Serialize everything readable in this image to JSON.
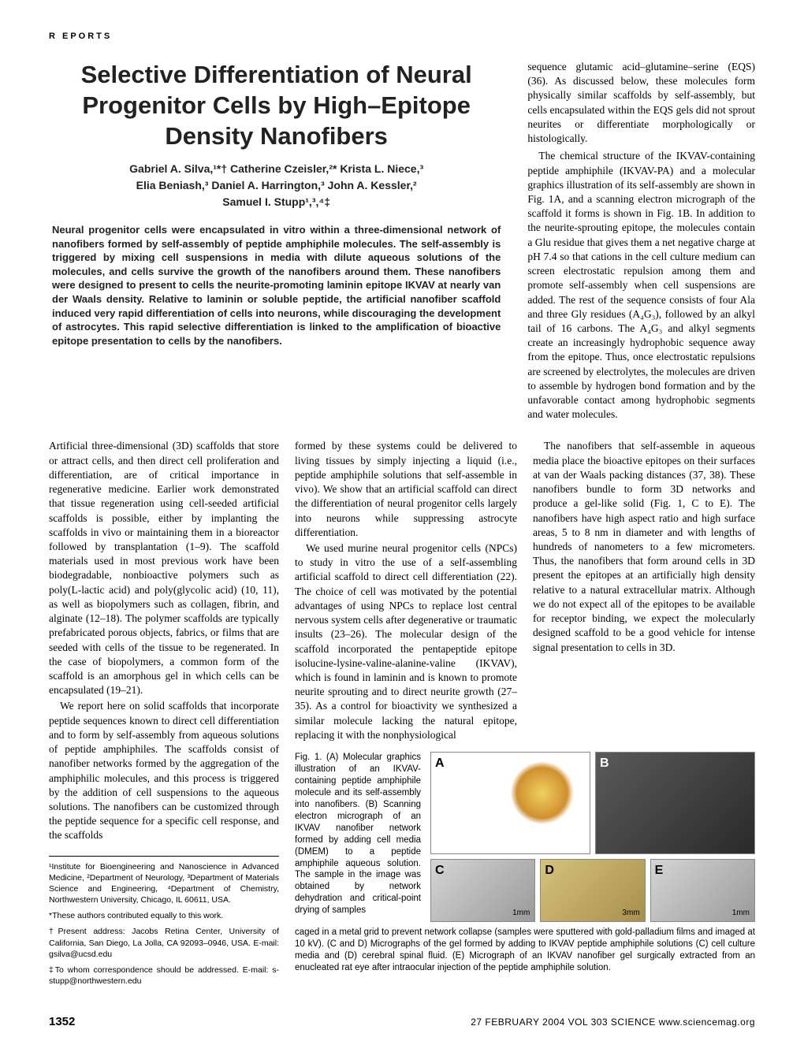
{
  "section_label": "R EPORTS",
  "title": "Selective Differentiation of Neural Progenitor Cells by High–Epitope Density Nanofibers",
  "authors_line1": "Gabriel A. Silva,¹*† Catherine Czeisler,²* Krista L. Niece,³",
  "authors_line2": "Elia Beniash,³ Daniel A. Harrington,³ John A. Kessler,²",
  "authors_line3": "Samuel I. Stupp¹,³,⁴‡",
  "abstract": "Neural progenitor cells were encapsulated in vitro within a three-dimensional network of nanofibers formed by self-assembly of peptide amphiphile molecules. The self-assembly is triggered by mixing cell suspensions in media with dilute aqueous solutions of the molecules, and cells survive the growth of the nanofibers around them. These nanofibers were designed to present to cells the neurite-promoting laminin epitope IKVAV at nearly van der Waals density. Relative to laminin or soluble peptide, the artificial nanofiber scaffold induced very rapid differentiation of cells into neurons, while discouraging the development of astrocytes. This rapid selective differentiation is linked to the amplification of bioactive epitope presentation to cells by the nanofibers.",
  "right_intro_p1": "sequence glutamic acid–glutamine–serine (EQS) (36). As discussed below, these molecules form physically similar scaffolds by self-assembly, but cells encapsulated within the EQS gels did not sprout neurites or differentiate morphologically or histologically.",
  "right_intro_p2": "The chemical structure of the IKVAV-containing peptide amphiphile (IKVAV-PA) and a molecular graphics illustration of its self-assembly are shown in Fig. 1A, and a scanning electron micrograph of the scaffold it forms is shown in Fig. 1B. In addition to the neurite-sprouting epitope, the molecules contain a Glu residue that gives them a net negative charge at pH 7.4 so that cations in the cell culture medium can screen electrostatic repulsion among them and promote self-assembly when cell suspensions are added. The rest of the sequence consists of four Ala and three Gly residues (A₄G₃), followed by an alkyl tail of 16 carbons. The A₄G₃ and alkyl segments create an increasingly hydrophobic sequence away from the epitope. Thus, once electrostatic repulsions are screened by electrolytes, the molecules are driven to assemble by hydrogen bond formation and by the unfavorable contact among hydrophobic segments and water molecules.",
  "right_intro_p3": "The nanofibers that self-assemble in aqueous media place the bioactive epitopes on their surfaces at van der Waals packing distances (37, 38). These nanofibers bundle to form 3D networks and produce a gel-like solid (Fig. 1, C to E). The nanofibers have high aspect ratio and high surface areas, 5 to 8 nm in diameter and with lengths of hundreds of nanometers to a few micrometers. Thus, the nanofibers that form around cells in 3D present the epitopes at an artificially high density relative to a natural extracellular matrix. Although we do not expect all of the epitopes to be available for receptor binding, we expect the molecularly designed scaffold to be a good vehicle for intense signal presentation to cells in 3D.",
  "col1_p1": "Artificial three-dimensional (3D) scaffolds that store or attract cells, and then direct cell proliferation and differentiation, are of critical importance in regenerative medicine. Earlier work demonstrated that tissue regeneration using cell-seeded artificial scaffolds is possible, either by implanting the scaffolds in vivo or maintaining them in a bioreactor followed by transplantation (1–9). The scaffold materials used in most previous work have been biodegradable, nonbioactive polymers such as poly(L-lactic acid) and poly(glycolic acid) (10, 11), as well as biopolymers such as collagen, fibrin, and alginate (12–18). The polymer scaffolds are typically prefabricated porous objects, fabrics, or films that are seeded with cells of the tissue to be regenerated. In the case of biopolymers, a common form of the scaffold is an amorphous gel in which cells can be encapsulated (19–21).",
  "col1_p2": "We report here on solid scaffolds that incorporate peptide sequences known to direct cell differentiation and to form by self-assembly from aqueous solutions of peptide amphiphiles. The scaffolds consist of nanofiber networks formed by the aggregation of the amphiphilic molecules, and this process is triggered by the addition of cell suspensions to the aqueous solutions. The nanofibers can be customized through the peptide sequence for a specific cell response, and the scaffolds",
  "affil_p1": "¹Institute for Bioengineering and Nanoscience in Advanced Medicine, ²Department of Neurology, ³Department of Materials Science and Engineering, ⁴Department of Chemistry, Northwestern University, Chicago, IL 60611, USA.",
  "affil_p2": "*These authors contributed equally to this work.",
  "affil_p3": "†Present address: Jacobs Retina Center, University of California, San Diego, La Jolla, CA 92093–0946, USA. E-mail: gsilva@ucsd.edu",
  "affil_p4": "‡To whom correspondence should be addressed. E-mail: s-stupp@northwestern.edu",
  "col2_p1": "formed by these systems could be delivered to living tissues by simply injecting a liquid (i.e., peptide amphiphile solutions that self-assemble in vivo). We show that an artificial scaffold can direct the differentiation of neural progenitor cells largely into neurons while suppressing astrocyte differentiation.",
  "col2_p2": "We used murine neural progenitor cells (NPCs) to study in vitro the use of a self-assembling artificial scaffold to direct cell differentiation (22). The choice of cell was motivated by the potential advantages of using NPCs to replace lost central nervous system cells after degenerative or traumatic insults (23–26). The molecular design of the scaffold incorporated the pentapeptide epitope isolucine-lysine-valine-alanine-valine (IKVAV), which is found in laminin and is known to promote neurite sprouting and to direct neurite growth (27–35). As a control for bioactivity we synthesized a similar molecule lacking the natural epitope, replacing it with the nonphysiological",
  "fig_caption_left": "Fig. 1. (A) Molecular graphics illustration of an IKVAV-containing peptide amphiphile molecule and its self-assembly into nanofibers. (B) Scanning electron micrograph of an IKVAV nanofiber network formed by adding cell media (DMEM) to a peptide amphiphile aqueous solution. The sample in the image was obtained by network dehydration and critical-point drying of samples",
  "fig_caption_cont": "caged in a metal grid to prevent network collapse (samples were sputtered with gold-palladium films and imaged at 10 kV). (C and D) Micrographs of the gel formed by adding to IKVAV peptide amphiphile solutions (C) cell culture media and (D) cerebral spinal fluid. (E) Micrograph of an IKVAV nanofiber gel surgically extracted from an enucleated rat eye after intraocular injection of the peptide amphiphile solution.",
  "fig_labels": {
    "a": "A",
    "b": "B",
    "c": "C",
    "d": "D",
    "e": "E"
  },
  "fig_scales": {
    "c": "1mm",
    "d": "3mm",
    "e": "1mm"
  },
  "page_number": "1352",
  "footer_line": "27 FEBRUARY 2004   VOL 303   SCIENCE   www.sciencemag.org"
}
